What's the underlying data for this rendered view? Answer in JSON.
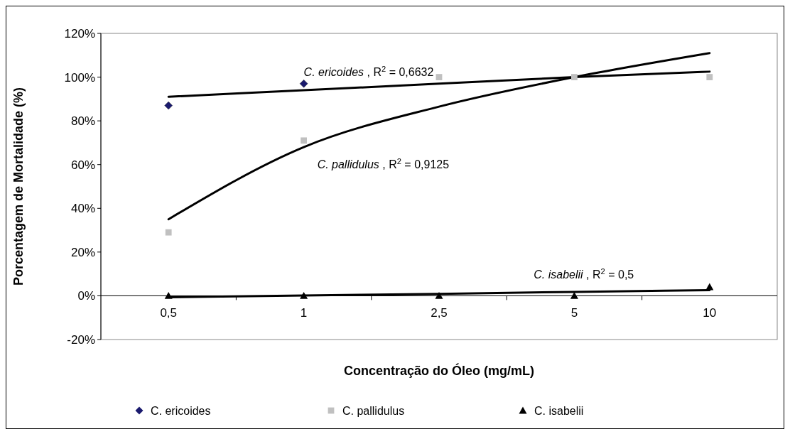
{
  "chart_data": {
    "type": "scatter",
    "xlabel": "Concentração do Óleo (mg/mL)",
    "ylabel": "Porcentagem de Mortalidade (%)",
    "categories": [
      "0,5",
      "1",
      "2,5",
      "5",
      "10"
    ],
    "ylim": [
      -20,
      120
    ],
    "yticks": [
      {
        "value": -20,
        "label": "-20%"
      },
      {
        "value": 0,
        "label": "0%"
      },
      {
        "value": 20,
        "label": "20%"
      },
      {
        "value": 40,
        "label": "40%"
      },
      {
        "value": 60,
        "label": "60%"
      },
      {
        "value": 80,
        "label": "80%"
      },
      {
        "value": 100,
        "label": "100%"
      },
      {
        "value": 120,
        "label": "120%"
      }
    ],
    "grid": false,
    "legend": "bottom",
    "series": [
      {
        "name": "C. ericoides",
        "marker": "diamond",
        "color": "#1a1a6e",
        "values": [
          87,
          97,
          null,
          null,
          null
        ]
      },
      {
        "name": "C. pallidulus",
        "marker": "square",
        "color": "#c0c0c0",
        "values": [
          29,
          71,
          100,
          100,
          100
        ]
      },
      {
        "name": "C. isabelii",
        "marker": "triangle",
        "color": "#000000",
        "values": [
          0,
          0,
          0,
          0,
          4
        ]
      },
      {
        "type": "line",
        "color": "#000000",
        "x": [
          "0,5",
          "1",
          "2,5",
          "5",
          "10"
        ],
        "values": [
          91,
          94,
          97,
          100,
          102.5
        ]
      },
      {
        "type": "line",
        "color": "#000000",
        "x": [
          "0,5",
          "1",
          "2,5",
          "5",
          "10"
        ],
        "values": [
          35,
          68,
          86.5,
          100,
          111
        ]
      },
      {
        "type": "line",
        "color": "#000000",
        "x": [
          "0,5",
          "1",
          "2,5",
          "5",
          "10"
        ],
        "values": [
          -0.7,
          0.1,
          0.9,
          1.8,
          2.6
        ]
      }
    ],
    "annotations": [
      "C. ericoides , R$^{2}$ = 0,6632",
      "C. pallidulus , R$^{2}$ = 0,9125",
      "C. isabelii , R$^{2}$ = 0,5"
    ]
  }
}
